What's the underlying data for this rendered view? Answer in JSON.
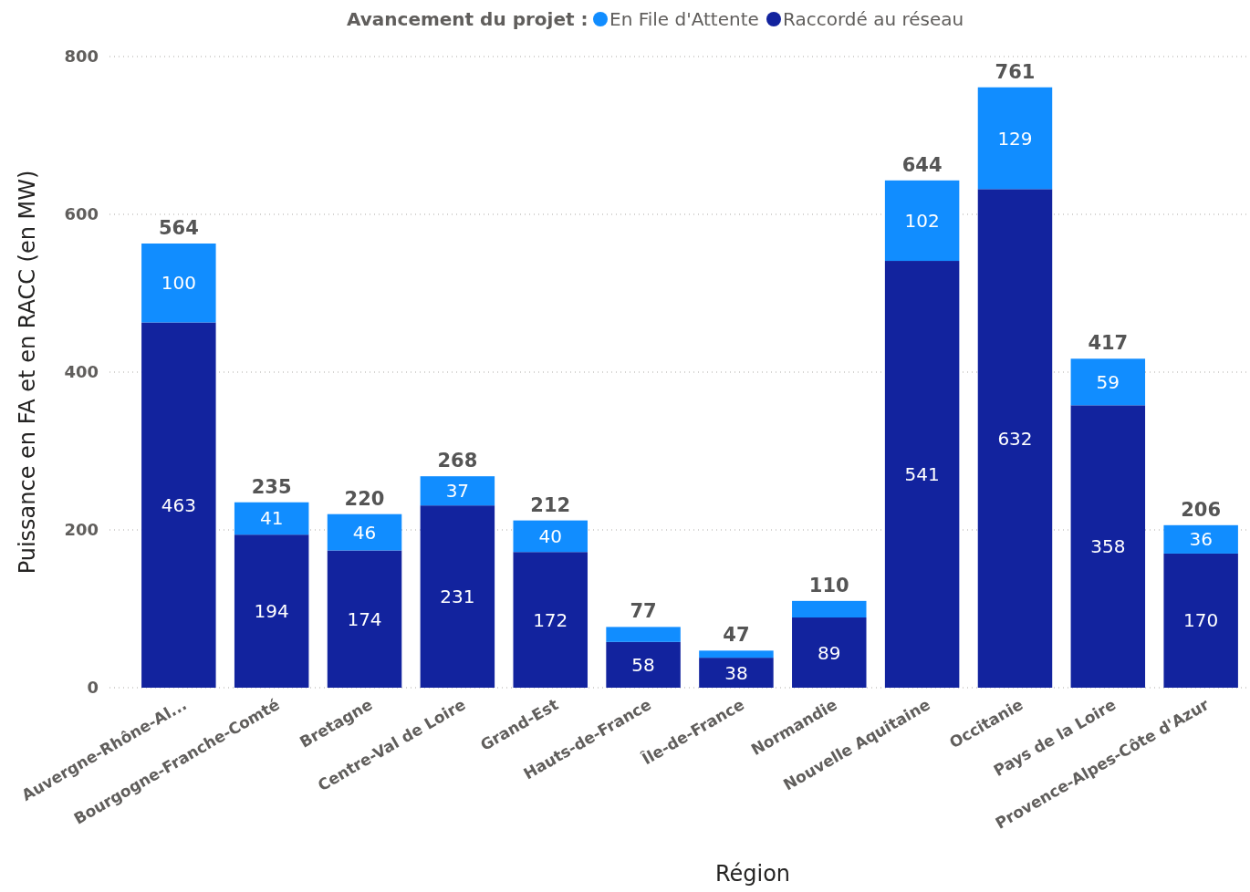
{
  "chart_data": {
    "type": "bar",
    "stacked": true,
    "xlabel": "Région",
    "ylabel": "Puissance en FA et en RACC (en MW)",
    "legend_title": "Avancement du projet :",
    "legend": "top",
    "categories": [
      "Auvergne-Rhône-Al...",
      "Bourgogne-Franche-Comté",
      "Bretagne",
      "Centre-Val de Loire",
      "Grand-Est",
      "Hauts-de-France",
      "Île-de-France",
      "Normandie",
      "Nouvelle Aquitaine",
      "Occitanie",
      "Pays de la Loire",
      "Provence-Alpes-Côte d'Azur"
    ],
    "series": [
      {
        "name": "Raccordé au réseau",
        "color": "#12239e",
        "values": [
          463,
          194,
          174,
          231,
          172,
          58,
          38,
          89,
          541,
          632,
          358,
          170
        ],
        "value_labels": [
          "463",
          "194",
          "174",
          "231",
          "172",
          "58",
          "38",
          "89",
          "541",
          "632",
          "358",
          "170"
        ]
      },
      {
        "name": "En File d'Attente",
        "color": "#118dff",
        "values": [
          100,
          41,
          46,
          37,
          40,
          19,
          9,
          21,
          102,
          129,
          59,
          36
        ],
        "value_labels": [
          "100",
          "41",
          "46",
          "37",
          "40",
          null,
          null,
          null,
          "102",
          "129",
          "59",
          "36"
        ]
      }
    ],
    "totals": [
      "564",
      "235",
      "220",
      "268",
      "212",
      "77",
      "47",
      "110",
      "644",
      "761",
      "417",
      "206"
    ],
    "ylim": [
      0,
      800
    ],
    "yticks": [
      0,
      200,
      400,
      600,
      800
    ],
    "grid": "y"
  }
}
